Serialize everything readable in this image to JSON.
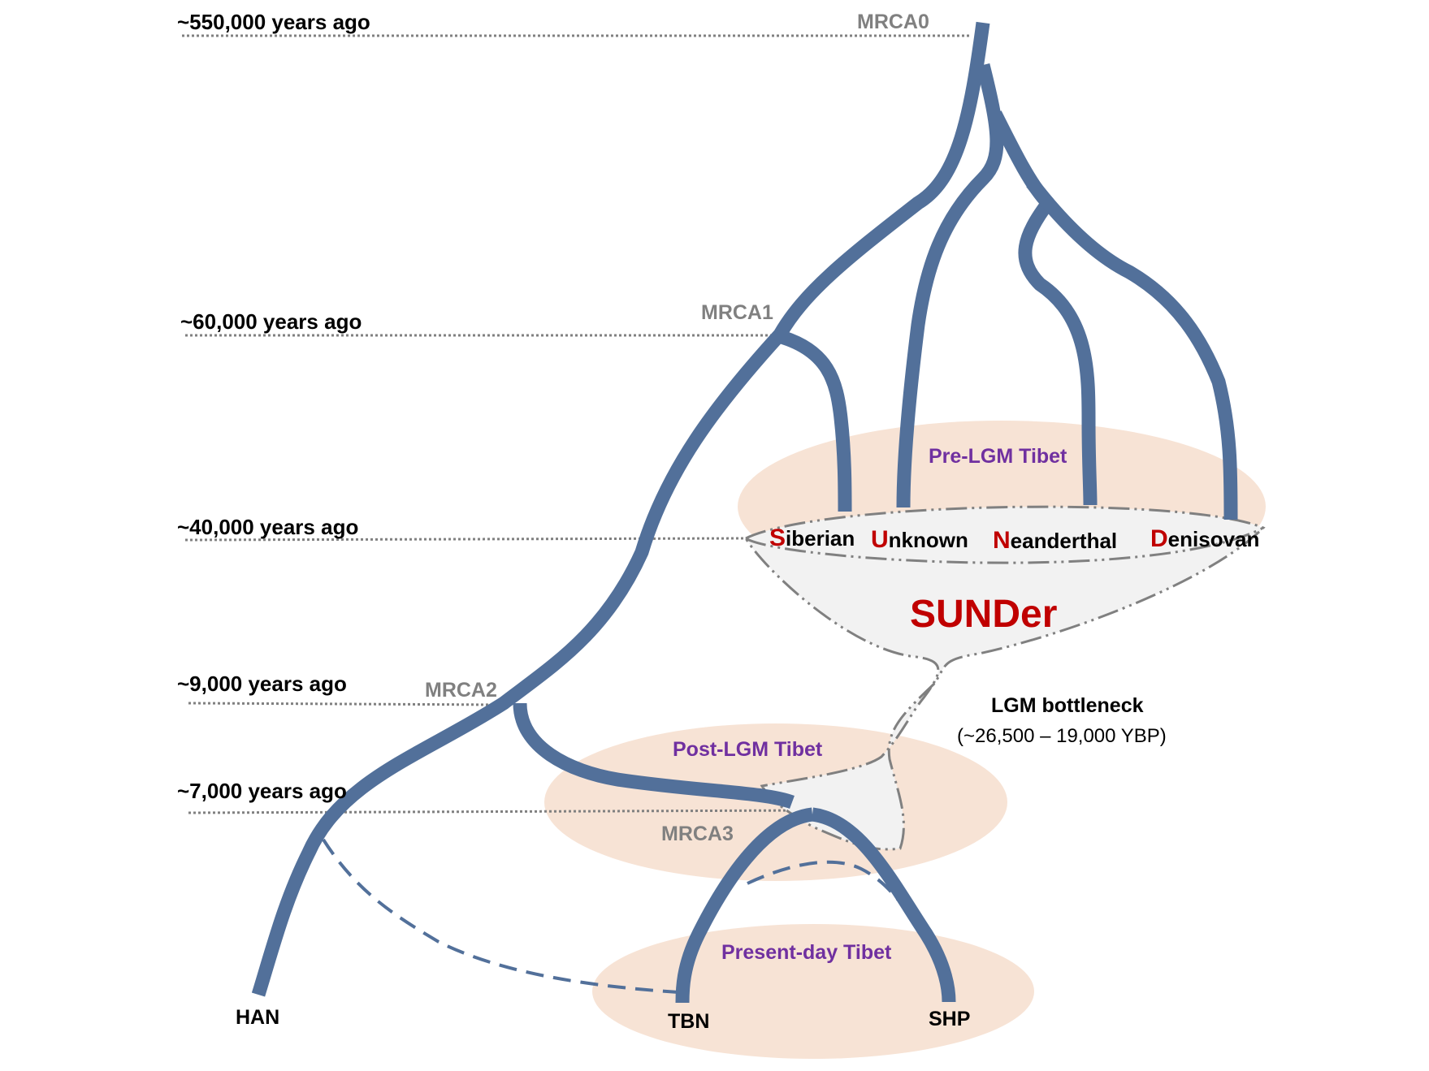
{
  "timeline": [
    {
      "label": "~550,000 years ago"
    },
    {
      "label": "~60,000 years ago"
    },
    {
      "label": "~40,000 years ago"
    },
    {
      "label": "~9,000 years ago"
    },
    {
      "label": "~7,000 years ago"
    }
  ],
  "mrca": [
    "MRCA0",
    "MRCA1",
    "MRCA2",
    "MRCA3"
  ],
  "regions": {
    "pre_lgm": "Pre-LGM Tibet",
    "post_lgm": "Post-LGM Tibet",
    "present": "Present-day Tibet"
  },
  "archaic_groups": [
    {
      "initial": "S",
      "rest": "iberian"
    },
    {
      "initial": "U",
      "rest": "nknown"
    },
    {
      "initial": "N",
      "rest": "eanderthal"
    },
    {
      "initial": "D",
      "rest": "enisovan"
    }
  ],
  "sunder": "SUNDer",
  "bottleneck": {
    "label": "LGM bottleneck",
    "range": "(~26,500 – 19,000 YBP)"
  },
  "leaves": {
    "han": "HAN",
    "tbn": "TBN",
    "shp": "SHP"
  },
  "colors": {
    "branch": "#52709a",
    "region_fill": "#f7e3d5",
    "highlight": "#c00000",
    "region_text": "#7030a0",
    "mrca_text": "#808080"
  }
}
